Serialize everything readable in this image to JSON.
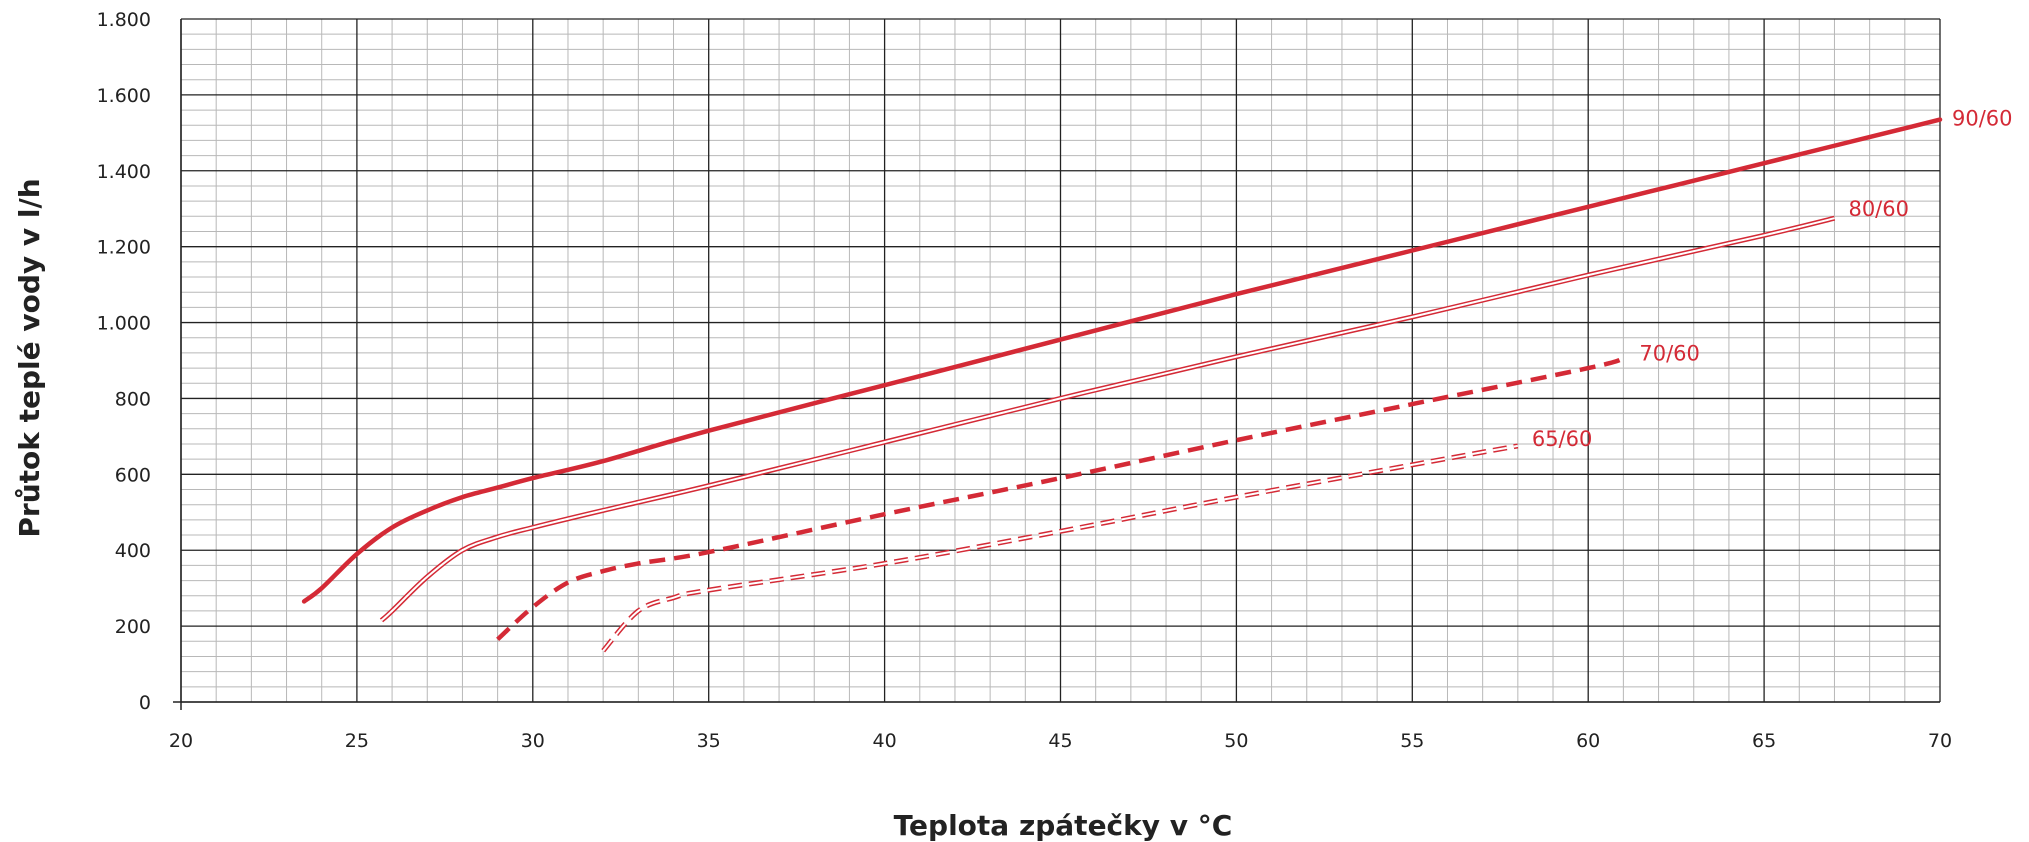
{
  "chart_data": {
    "type": "line",
    "title": "",
    "xlabel": "Teplota zpátečky v °C",
    "ylabel": "Průtok teplé vody v l/h",
    "xlim": [
      20,
      70
    ],
    "ylim": [
      0,
      1800
    ],
    "x_ticks": [
      20,
      25,
      30,
      35,
      40,
      45,
      50,
      55,
      60,
      65,
      70
    ],
    "y_ticks": [
      0,
      200,
      400,
      600,
      800,
      1000,
      1200,
      1400,
      1600,
      1800
    ],
    "x_tick_labels": [
      "20",
      "25",
      "30",
      "35",
      "40",
      "45",
      "50",
      "55",
      "60",
      "65",
      "70"
    ],
    "y_tick_labels": [
      "0",
      "200",
      "400",
      "600",
      "800",
      "1.000",
      "1.200",
      "1.400",
      "1.600",
      "1.800"
    ],
    "grid": true,
    "legend": "none",
    "series": [
      {
        "name": "90/60",
        "style": "thick-solid",
        "color": "#d42a36",
        "x": [
          23.5,
          24,
          25,
          26,
          27,
          28,
          29,
          30,
          32,
          35,
          40,
          45,
          50,
          55,
          60,
          65,
          70
        ],
        "y": [
          265,
          300,
          390,
          460,
          505,
          540,
          565,
          590,
          635,
          715,
          835,
          955,
          1075,
          1190,
          1305,
          1420,
          1535
        ]
      },
      {
        "name": "80/60",
        "style": "double-line",
        "color": "#d42a36",
        "x": [
          25.7,
          26,
          27,
          28,
          29,
          30,
          32,
          35,
          40,
          45,
          50,
          55,
          60,
          65,
          67
        ],
        "y": [
          215,
          240,
          330,
          400,
          435,
          460,
          505,
          570,
          685,
          800,
          910,
          1015,
          1125,
          1230,
          1275
        ]
      },
      {
        "name": "70/60",
        "style": "thick-dashed",
        "color": "#d42a36",
        "x": [
          29,
          30,
          31,
          32,
          33,
          35,
          40,
          45,
          50,
          55,
          60,
          61
        ],
        "y": [
          165,
          250,
          315,
          345,
          365,
          395,
          495,
          590,
          690,
          785,
          880,
          905
        ]
      },
      {
        "name": "65/60",
        "style": "double-dashed",
        "color": "#d42a36",
        "x": [
          32,
          33,
          34,
          35,
          40,
          45,
          50,
          55,
          58
        ],
        "y": [
          135,
          240,
          275,
          295,
          365,
          450,
          540,
          625,
          675
        ]
      }
    ]
  }
}
